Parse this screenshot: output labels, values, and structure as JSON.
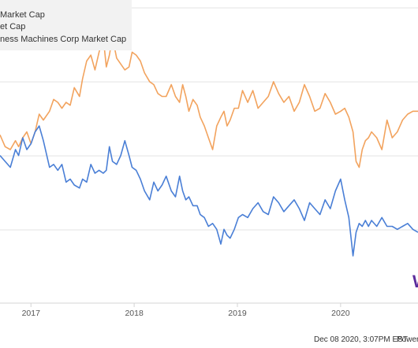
{
  "footer": {
    "timestamp": "Dec 08 2020, 3:07PM EST.",
    "powered": "Powere"
  },
  "logo": {
    "text": "W",
    "color": "#5b2c9c"
  },
  "chart_data": {
    "type": "line",
    "legend": {
      "placement": "top-left",
      "items": [
        "Market Cap",
        "et Cap",
        "ness Machines Corp Market Cap"
      ]
    },
    "x_ticks": [
      2017,
      2018,
      2019,
      2020
    ],
    "xlim": [
      2016.7,
      2020.75
    ],
    "ylim": [
      0,
      100
    ],
    "grid": true,
    "series": [
      {
        "color": "#f2a35e",
        "x": [
          2016.7,
          2016.75,
          2016.8,
          2016.85,
          2016.88,
          2016.92,
          2016.96,
          2017.0,
          2017.04,
          2017.08,
          2017.12,
          2017.18,
          2017.22,
          2017.26,
          2017.3,
          2017.34,
          2017.38,
          2017.42,
          2017.47,
          2017.5,
          2017.54,
          2017.58,
          2017.62,
          2017.66,
          2017.7,
          2017.73,
          2017.76,
          2017.79,
          2017.83,
          2017.87,
          2017.91,
          2017.95,
          2017.98,
          2018.02,
          2018.06,
          2018.1,
          2018.15,
          2018.19,
          2018.23,
          2018.27,
          2018.31,
          2018.36,
          2018.4,
          2018.44,
          2018.47,
          2018.5,
          2018.53,
          2018.57,
          2018.61,
          2018.64,
          2018.68,
          2018.72,
          2018.76,
          2018.8,
          2018.84,
          2018.87,
          2018.9,
          2018.93,
          2018.97,
          2019.01,
          2019.05,
          2019.1,
          2019.15,
          2019.2,
          2019.25,
          2019.3,
          2019.35,
          2019.4,
          2019.45,
          2019.5,
          2019.55,
          2019.6,
          2019.65,
          2019.7,
          2019.75,
          2019.8,
          2019.85,
          2019.9,
          2019.95,
          2020.0,
          2020.04,
          2020.08,
          2020.12,
          2020.15,
          2020.18,
          2020.21,
          2020.24,
          2020.27,
          2020.3,
          2020.35,
          2020.4,
          2020.45,
          2020.5,
          2020.55,
          2020.6,
          2020.65,
          2020.7,
          2020.75
        ],
        "values": [
          57,
          53,
          52,
          55,
          53,
          56,
          58,
          54,
          58,
          64,
          62,
          65,
          69,
          68,
          66,
          68,
          67,
          73,
          70,
          76,
          82,
          84,
          79,
          85,
          90,
          80,
          84,
          90,
          83,
          81,
          79,
          80,
          85,
          84,
          82,
          78,
          75,
          74,
          71,
          70,
          70,
          74,
          70,
          68,
          74,
          70,
          65,
          69,
          67,
          63,
          60,
          56,
          52,
          60,
          63,
          65,
          60,
          62,
          66,
          66,
          72,
          68,
          72,
          66,
          68,
          70,
          75,
          71,
          68,
          70,
          65,
          68,
          74,
          70,
          65,
          66,
          71,
          68,
          64,
          65,
          66,
          63,
          58,
          48,
          46,
          52,
          55,
          56,
          58,
          56,
          52,
          62,
          56,
          58,
          62,
          64,
          65,
          65
        ]
      },
      {
        "color": "#4a7fd6",
        "x": [
          2016.7,
          2016.75,
          2016.8,
          2016.85,
          2016.88,
          2016.92,
          2016.96,
          2017.0,
          2017.04,
          2017.08,
          2017.12,
          2017.18,
          2017.22,
          2017.26,
          2017.3,
          2017.34,
          2017.38,
          2017.42,
          2017.47,
          2017.5,
          2017.54,
          2017.58,
          2017.62,
          2017.66,
          2017.7,
          2017.73,
          2017.76,
          2017.79,
          2017.83,
          2017.87,
          2017.91,
          2017.95,
          2017.98,
          2018.02,
          2018.06,
          2018.1,
          2018.15,
          2018.19,
          2018.23,
          2018.27,
          2018.31,
          2018.36,
          2018.4,
          2018.44,
          2018.47,
          2018.5,
          2018.53,
          2018.57,
          2018.61,
          2018.64,
          2018.68,
          2018.72,
          2018.76,
          2018.8,
          2018.84,
          2018.87,
          2018.9,
          2018.93,
          2018.97,
          2019.01,
          2019.05,
          2019.1,
          2019.15,
          2019.2,
          2019.25,
          2019.3,
          2019.35,
          2019.4,
          2019.45,
          2019.5,
          2019.55,
          2019.6,
          2019.65,
          2019.7,
          2019.75,
          2019.8,
          2019.85,
          2019.9,
          2019.95,
          2020.0,
          2020.04,
          2020.08,
          2020.12,
          2020.15,
          2020.18,
          2020.21,
          2020.24,
          2020.27,
          2020.3,
          2020.35,
          2020.4,
          2020.45,
          2020.5,
          2020.55,
          2020.6,
          2020.65,
          2020.7,
          2020.75
        ],
        "values": [
          50,
          48,
          46,
          52,
          50,
          56,
          52,
          54,
          58,
          60,
          55,
          46,
          47,
          45,
          47,
          41,
          42,
          40,
          39,
          42,
          41,
          47,
          44,
          45,
          44,
          45,
          53,
          48,
          47,
          50,
          55,
          50,
          46,
          45,
          42,
          38,
          35,
          41,
          38,
          40,
          43,
          38,
          36,
          43,
          38,
          35,
          36,
          33,
          33,
          30,
          29,
          26,
          27,
          25,
          20,
          25,
          23,
          22,
          25,
          29,
          30,
          29,
          32,
          34,
          31,
          30,
          36,
          34,
          31,
          33,
          35,
          32,
          28,
          34,
          32,
          30,
          35,
          32,
          38,
          42,
          35,
          29,
          16,
          24,
          27,
          26,
          28,
          26,
          28,
          26,
          29,
          26,
          26,
          25,
          26,
          27,
          25,
          24
        ]
      }
    ]
  }
}
